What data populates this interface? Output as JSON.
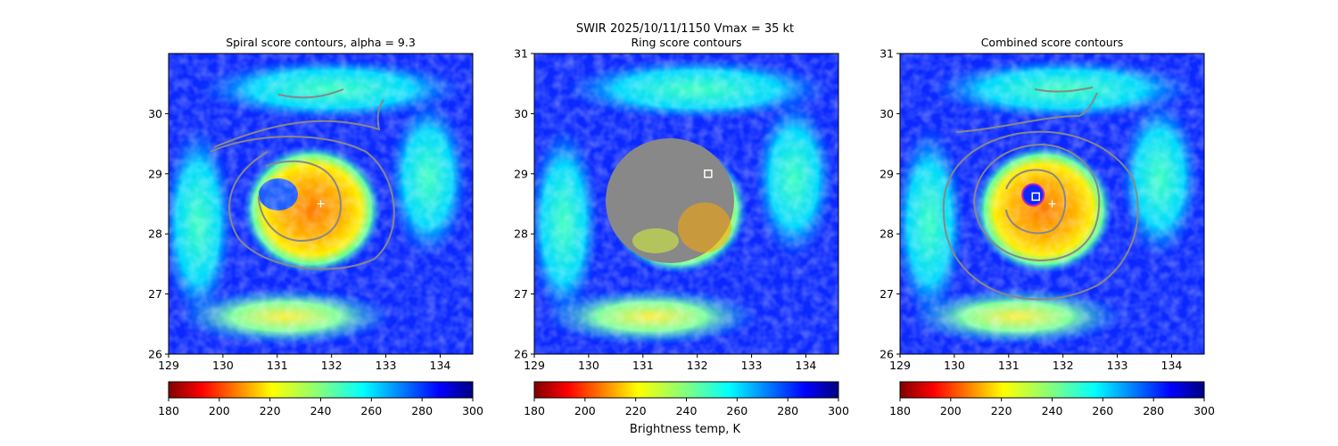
{
  "figure": {
    "suptitle_line1": "SWIR  2025/10/11/1150    Vmax = 35 kt",
    "colorbar_label": "Brightness temp, K"
  },
  "colors": {
    "grey_contour": "#888888",
    "marker_white": "#ffffff",
    "circle_outline": "#c020c0"
  },
  "chart_data": [
    {
      "type": "heatmap",
      "title": "Spiral score contours, alpha =  9.3",
      "xlim": [
        129,
        134.6
      ],
      "ylim": [
        26,
        31
      ],
      "x_ticks": [
        "129",
        "130",
        "131",
        "132",
        "133",
        "134"
      ],
      "y_ticks": [
        "26",
        "27",
        "28",
        "29",
        "30"
      ],
      "field_colormap": "jet_r",
      "colorbar_range": [
        180,
        300
      ],
      "colorbar_ticks": [
        "180",
        "200",
        "220",
        "240",
        "260",
        "280",
        "300"
      ],
      "overlay": "contours",
      "center_marker": {
        "lon": 131.8,
        "lat": 28.5,
        "symbol": "plus"
      }
    },
    {
      "type": "heatmap",
      "title": "Ring score contours",
      "xlim": [
        129,
        134.6
      ],
      "ylim": [
        26,
        31
      ],
      "x_ticks": [
        "129",
        "130",
        "131",
        "132",
        "133",
        "134"
      ],
      "y_ticks": [
        "26",
        "27",
        "28",
        "29",
        "30",
        "31"
      ],
      "field_colormap": "jet_r",
      "colorbar_range": [
        180,
        300
      ],
      "colorbar_ticks": [
        "180",
        "200",
        "220",
        "240",
        "260",
        "280",
        "300"
      ],
      "overlay": "ring mask",
      "ring_center": {
        "lon": 131.5,
        "lat": 28.55
      },
      "best_point_marker": {
        "lon": 132.2,
        "lat": 29.0,
        "symbol": "square"
      }
    },
    {
      "type": "heatmap",
      "title": "Combined score contours",
      "xlim": [
        129,
        134.6
      ],
      "ylim": [
        26,
        31
      ],
      "x_ticks": [
        "129",
        "130",
        "131",
        "132",
        "133",
        "134"
      ],
      "y_ticks": [
        "26",
        "27",
        "28",
        "29",
        "30",
        "31"
      ],
      "field_colormap": "jet_r",
      "colorbar_range": [
        180,
        300
      ],
      "colorbar_ticks": [
        "180",
        "200",
        "220",
        "240",
        "260",
        "280",
        "300"
      ],
      "overlay": "contours",
      "center_marker": {
        "lon": 131.8,
        "lat": 28.5,
        "symbol": "plus"
      },
      "best_point_marker": {
        "lon": 131.5,
        "lat": 28.62,
        "symbol": "square"
      },
      "circle": {
        "lon": 131.45,
        "lat": 28.65
      }
    }
  ]
}
